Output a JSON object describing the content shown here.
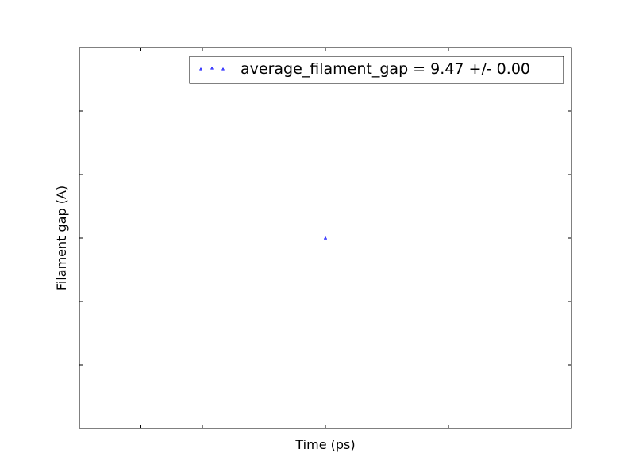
{
  "chart_data": {
    "type": "scatter",
    "title": "",
    "xlabel": "Time (ps)",
    "ylabel": "Filament gap (A)",
    "series": [
      {
        "name": "average_filament_gap =  9.47 +/-  0.00",
        "x": [
          0
        ],
        "y": [
          9.47
        ],
        "color": "#0000ff",
        "marker": "triangle-up"
      }
    ],
    "xlim": [
      -0.04,
      0.04
    ],
    "ylim": [
      9.37,
      9.57
    ],
    "tick_labels_visible": false,
    "grid": false,
    "legend": {
      "location": "upper right",
      "sample_markers": 3
    }
  }
}
